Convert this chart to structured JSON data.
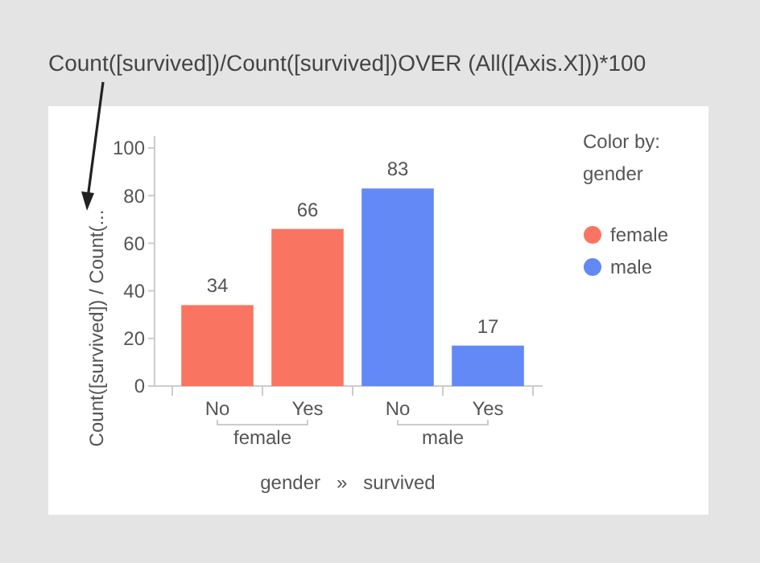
{
  "chart_data": {
    "type": "bar",
    "title": null,
    "annotations": [
      "Count([survived])/Count([survived])OVER (All([Axis.X]))*100"
    ],
    "ylabel": "Count([survived]) / Count(...",
    "xlabel": "gender   »   survived",
    "legend_title": "Color by:\ngender",
    "categories": [
      "No",
      "Yes",
      "No",
      "Yes"
    ],
    "series": [
      {
        "name": "female",
        "color": "#fa7561",
        "values": [
          34,
          66,
          null,
          null
        ]
      },
      {
        "name": "male",
        "color": "#6389f7",
        "values": [
          null,
          null,
          83,
          17
        ]
      }
    ],
    "ylim": [
      0,
      105
    ],
    "yticks": [
      0,
      20,
      40,
      60,
      80,
      100
    ],
    "data_labels": true,
    "legend": "right",
    "grid": false
  }
}
